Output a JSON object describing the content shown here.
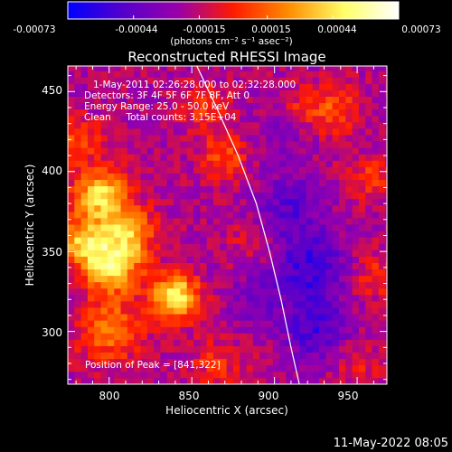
{
  "colorbar": {
    "tick_labels": [
      "-0.00073",
      "-0.00044",
      "-0.00015",
      "0.00015",
      "0.00044",
      "0.00073"
    ],
    "tick_values": [
      -0.00073,
      -0.00044,
      -0.00015,
      0.00015,
      0.00044,
      0.00073
    ],
    "range": [
      -0.00073,
      0.00073
    ],
    "units_label": "(photons cm⁻² s⁻¹ asec⁻²)",
    "colors": [
      "#0000ff",
      "#5500cc",
      "#9900aa",
      "#ff1a00",
      "#ff8c00",
      "#ffff66",
      "#ffffff"
    ]
  },
  "chart_data": {
    "type": "heatmap",
    "title": "Reconstructed RHESSI Image",
    "xlabel": "Heliocentric X (arcsec)",
    "ylabel": "Heliocentric Y (arcsec)",
    "xlim": [
      775,
      968
    ],
    "ylim": [
      267,
      466
    ],
    "x_ticks": [
      800,
      850,
      900,
      950
    ],
    "y_ticks": [
      300,
      350,
      400,
      450
    ],
    "x_tick_labels": [
      "800",
      "850",
      "900",
      "950"
    ],
    "y_tick_labels": [
      "300",
      "350",
      "400",
      "450"
    ],
    "annotations": [
      "1-May-2011 02:26:28.000 to 02:32:28.000",
      "Detectors: 3F 4F 5F 6F 7F 8F, Att 0",
      "Energy Range: 25.0 - 50.0 keV",
      "Clean     Total counts: 3.15E+04"
    ],
    "peak_label": "Position of Peak = [841,322]",
    "peak_position": [
      841,
      322
    ],
    "limb_curve": [
      [
        853,
        466
      ],
      [
        865,
        440
      ],
      [
        878,
        410
      ],
      [
        889,
        380
      ],
      [
        897,
        350
      ],
      [
        904,
        320
      ],
      [
        910,
        290
      ],
      [
        915,
        267
      ]
    ],
    "sources": [
      {
        "x": 840,
        "y": 322,
        "intensity": 0.00073,
        "sigma": 10
      },
      {
        "x": 795,
        "y": 385,
        "intensity": 0.00062,
        "sigma": 12
      },
      {
        "x": 802,
        "y": 340,
        "intensity": 0.0006,
        "sigma": 12
      },
      {
        "x": 785,
        "y": 355,
        "intensity": 0.00055,
        "sigma": 10
      },
      {
        "x": 812,
        "y": 362,
        "intensity": 0.0005,
        "sigma": 11
      },
      {
        "x": 800,
        "y": 300,
        "intensity": 0.00038,
        "sigma": 14
      },
      {
        "x": 780,
        "y": 420,
        "intensity": 0.0003,
        "sigma": 10
      },
      {
        "x": 870,
        "y": 410,
        "intensity": 0.0003,
        "sigma": 10
      },
      {
        "x": 858,
        "y": 440,
        "intensity": 0.00025,
        "sigma": 10
      },
      {
        "x": 935,
        "y": 440,
        "intensity": 0.00028,
        "sigma": 12
      },
      {
        "x": 958,
        "y": 395,
        "intensity": 0.00024,
        "sigma": 10
      },
      {
        "x": 960,
        "y": 335,
        "intensity": 0.00022,
        "sigma": 11
      },
      {
        "x": 950,
        "y": 280,
        "intensity": 0.00018,
        "sigma": 10
      },
      {
        "x": 865,
        "y": 280,
        "intensity": 0.0002,
        "sigma": 12
      },
      {
        "x": 885,
        "y": 355,
        "intensity": 0.00012,
        "sigma": 10
      },
      {
        "x": 915,
        "y": 440,
        "intensity": 0.00014,
        "sigma": 8
      },
      {
        "x": 922,
        "y": 340,
        "intensity": -0.00035,
        "sigma": 16
      },
      {
        "x": 908,
        "y": 378,
        "intensity": -0.00025,
        "sigma": 14
      },
      {
        "x": 925,
        "y": 300,
        "intensity": -0.0003,
        "sigma": 14
      },
      {
        "x": 888,
        "y": 320,
        "intensity": -0.00015,
        "sigma": 12
      },
      {
        "x": 905,
        "y": 420,
        "intensity": -0.00012,
        "sigma": 12
      }
    ],
    "background": -0.0002
  },
  "footer": {
    "timestamp": "11-May-2022 08:05"
  }
}
